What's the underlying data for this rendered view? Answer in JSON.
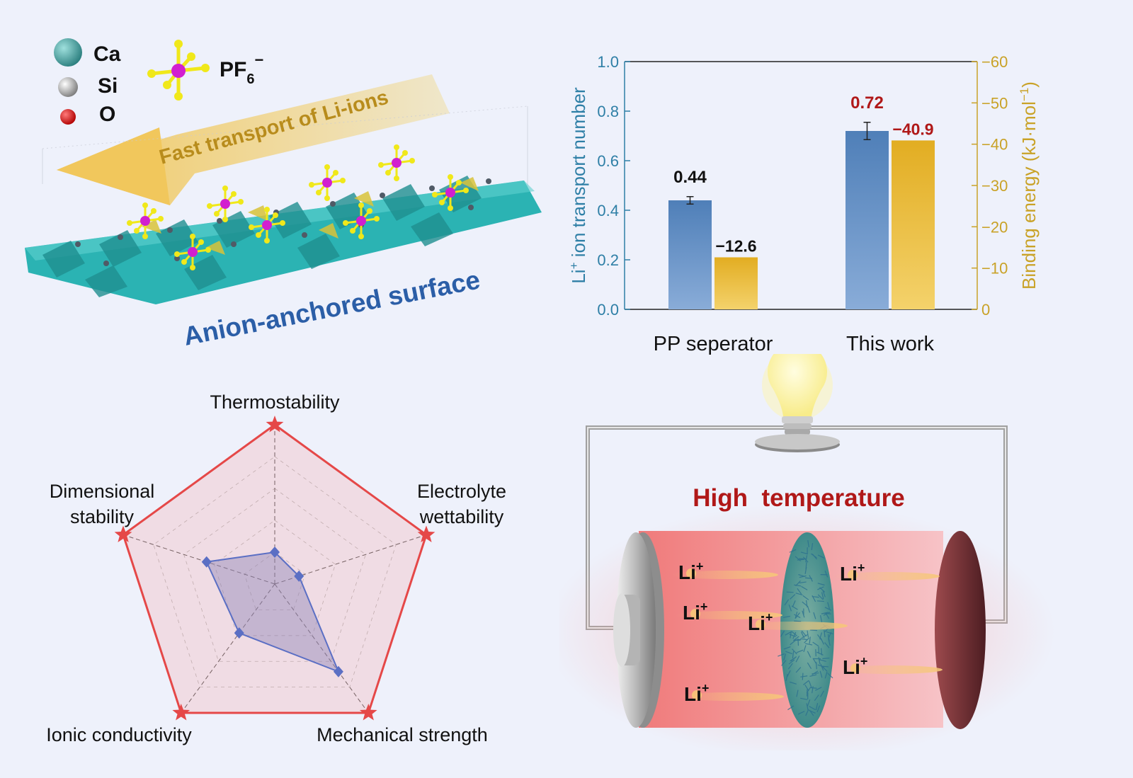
{
  "legend": {
    "ca": "Ca",
    "si": "Si",
    "o": "O",
    "pf6": "PF",
    "pf6_sub": "6",
    "pf6_sup": "−"
  },
  "structure": {
    "arrow_label": "Fast transport of Li-ions",
    "surface_label": "Anion-anchored surface"
  },
  "colors": {
    "ca": "#3c9b9b",
    "si": "#9a9a9a",
    "o": "#cc0000",
    "p": "#d21fcf",
    "f": "#f0e81a",
    "blue_bar": "#5b86bd",
    "gold_bar": "#e8b93a",
    "axis_left": "#2e7fa6",
    "axis_right": "#c9a227",
    "highlight_red": "#b01818",
    "radar_red": "#e54848",
    "radar_blue": "#5b6fc4",
    "title_blue": "#2b5ea7"
  },
  "chart_data": [
    {
      "type": "bar",
      "categories": [
        "PP seperator",
        "This work"
      ],
      "series": [
        {
          "name": "Li+ ion transport number",
          "axis": "left",
          "values": [
            0.44,
            0.72
          ],
          "errors": [
            0.015,
            0.035
          ]
        },
        {
          "name": "Binding energy",
          "axis": "right",
          "values": [
            -12.6,
            -40.9
          ]
        }
      ],
      "value_labels": {
        "transport": [
          "0.44",
          "0.72"
        ],
        "binding": [
          "−12.6",
          "−40.9"
        ]
      },
      "ylabel_left": "Li",
      "ylabel_left_sup": "+",
      "ylabel_left_rest": " ion transport number",
      "ylabel_right": "Binding energy (kJ·mol",
      "ylabel_right_sup": "−1",
      "ylabel_right_end": ")",
      "ylim_left": [
        0,
        1.0
      ],
      "ylim_right": [
        0,
        -60
      ],
      "yticks_left": [
        "0.0",
        "0.2",
        "0.4",
        "0.6",
        "0.8",
        "1.0"
      ],
      "yticks_right": [
        "0",
        "−10",
        "−20",
        "−30",
        "−40",
        "−50",
        "−60"
      ]
    },
    {
      "type": "radar",
      "axes": [
        "Thermostability",
        "Electrolyte wettability",
        "Mechanical strength",
        "Ionic conductivity",
        "Dimensional stability"
      ],
      "axis_label_lines": [
        [
          "Thermostability"
        ],
        [
          "Electrolyte",
          "wettability"
        ],
        [
          "Mechanical strength"
        ],
        [
          "Ionic conductivity"
        ],
        [
          "Dimensional",
          "stability"
        ]
      ],
      "series": [
        {
          "name": "This work",
          "values": [
            1.0,
            1.0,
            1.0,
            1.0,
            1.0
          ]
        },
        {
          "name": "PP seperator",
          "values": [
            0.2,
            0.16,
            0.68,
            0.38,
            0.45
          ]
        }
      ],
      "rings": 5
    }
  ],
  "battery": {
    "title": "High  temperature",
    "ion_label": "Li",
    "ion_sup": "+"
  }
}
